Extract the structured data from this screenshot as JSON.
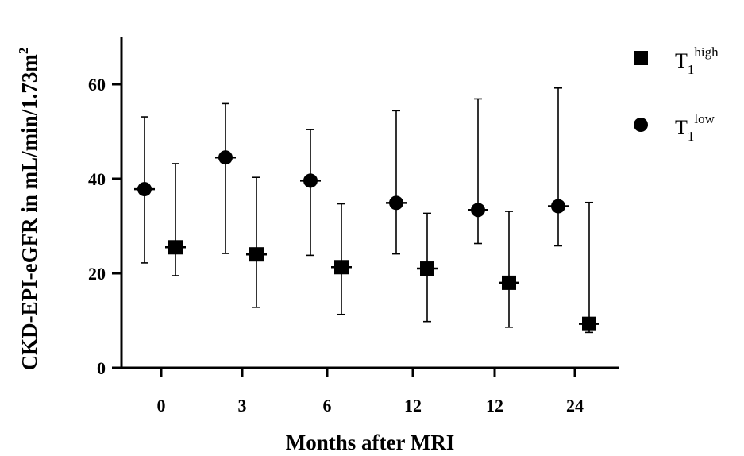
{
  "chart_data": {
    "type": "scatter",
    "title": "",
    "xlabel": "Months after MRI",
    "ylabel": "CKD-EPI-eGFR in mL/min/1.73m",
    "ylabel_sup": "2",
    "categories": [
      "0",
      "3",
      "6",
      "12",
      "12",
      "24"
    ],
    "ylim": [
      0,
      70
    ],
    "y_ticks": [
      0,
      20,
      40,
      60
    ],
    "grid": false,
    "legend_position": "top-right",
    "series": [
      {
        "name": "T1 high",
        "legend_base": "T",
        "legend_sub": "1",
        "legend_sup": "high",
        "marker": "square",
        "values": [
          25.5,
          24,
          21.3,
          21,
          18,
          9.3
        ],
        "err_low": [
          19.5,
          12.8,
          11.3,
          9.8,
          8.6,
          7.5
        ],
        "err_high": [
          43.2,
          40.3,
          34.7,
          32.7,
          33.1,
          35
        ]
      },
      {
        "name": "T1 low",
        "legend_base": "T",
        "legend_sub": "1",
        "legend_sup": "low",
        "marker": "circle",
        "values": [
          37.8,
          44.5,
          39.6,
          34.9,
          33.4,
          34.2
        ],
        "err_low": [
          22.2,
          24.2,
          23.8,
          24.1,
          26.3,
          25.8
        ],
        "err_high": [
          53.1,
          55.9,
          50.4,
          54.4,
          56.9,
          59.2
        ]
      }
    ]
  }
}
